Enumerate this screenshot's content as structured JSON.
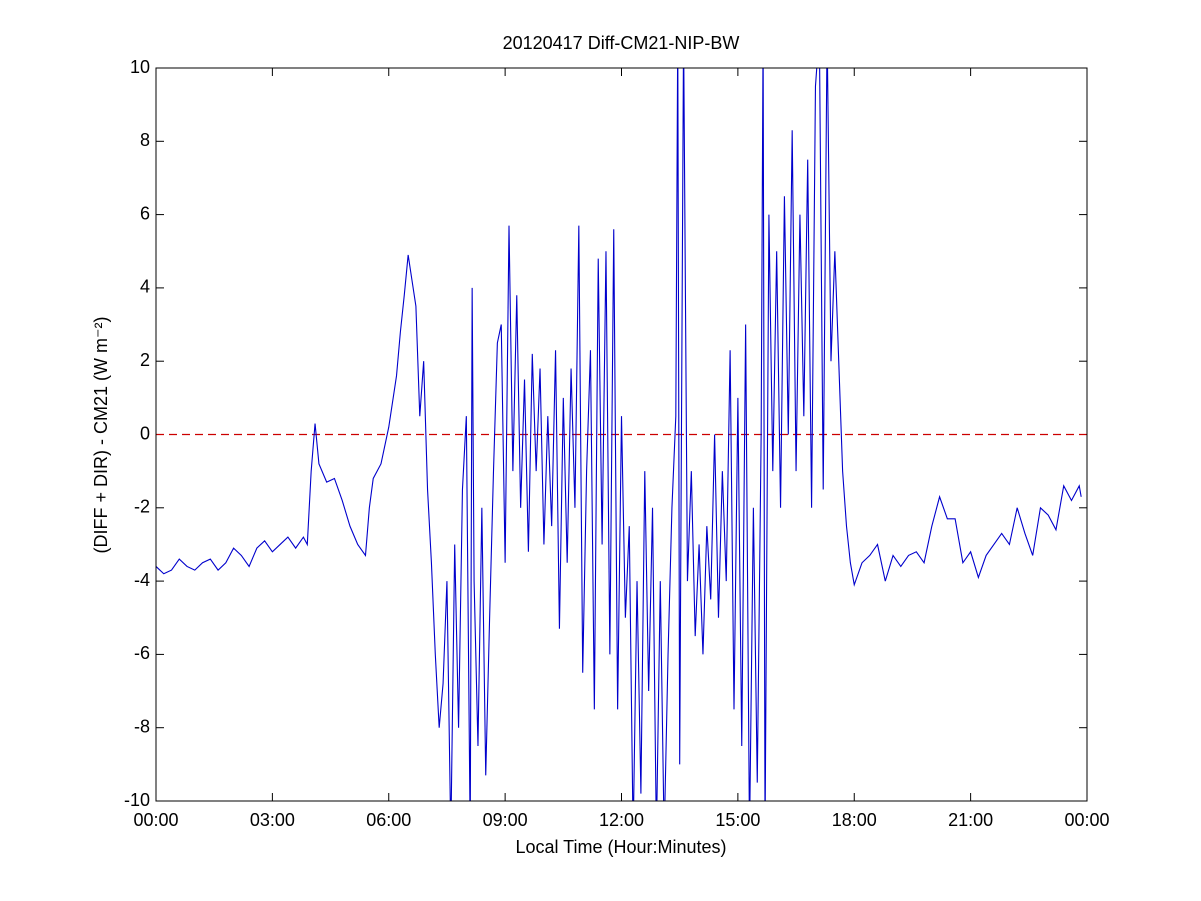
{
  "chart_data": {
    "type": "line",
    "title": "20120417 Diff-CM21-NIP-BW",
    "xlabel": "Local Time (Hour:Minutes)",
    "ylabel": "(DIFF + DIR) - CM21 (W m⁻²)",
    "color": "#0000cc",
    "reference_line": {
      "y": 0,
      "color": "#cc0000",
      "style": "dashed"
    },
    "xlim": [
      0,
      24
    ],
    "xticks": [
      {
        "value": 0,
        "label": "00:00"
      },
      {
        "value": 3,
        "label": "03:00"
      },
      {
        "value": 6,
        "label": "06:00"
      },
      {
        "value": 9,
        "label": "09:00"
      },
      {
        "value": 12,
        "label": "12:00"
      },
      {
        "value": 15,
        "label": "15:00"
      },
      {
        "value": 18,
        "label": "18:00"
      },
      {
        "value": 21,
        "label": "21:00"
      },
      {
        "value": 24,
        "label": "00:00"
      }
    ],
    "ylim": [
      -10,
      10
    ],
    "yticks": [
      -10,
      -8,
      -6,
      -4,
      -2,
      0,
      2,
      4,
      6,
      8,
      10
    ],
    "x": [
      0.0,
      0.2,
      0.4,
      0.6,
      0.8,
      1.0,
      1.2,
      1.4,
      1.6,
      1.8,
      2.0,
      2.2,
      2.4,
      2.6,
      2.8,
      3.0,
      3.2,
      3.4,
      3.6,
      3.8,
      3.9,
      4.0,
      4.1,
      4.2,
      4.4,
      4.6,
      4.8,
      5.0,
      5.2,
      5.4,
      5.5,
      5.6,
      5.8,
      6.0,
      6.2,
      6.3,
      6.4,
      6.5,
      6.6,
      6.7,
      6.8,
      6.9,
      7.0,
      7.1,
      7.2,
      7.3,
      7.4,
      7.5,
      7.6,
      7.7,
      7.8,
      7.9,
      8.0,
      8.1,
      8.15,
      8.2,
      8.3,
      8.4,
      8.5,
      8.6,
      8.7,
      8.8,
      8.9,
      9.0,
      9.1,
      9.2,
      9.3,
      9.4,
      9.5,
      9.6,
      9.7,
      9.8,
      9.9,
      10.0,
      10.1,
      10.2,
      10.3,
      10.4,
      10.5,
      10.6,
      10.7,
      10.8,
      10.9,
      11.0,
      11.1,
      11.2,
      11.3,
      11.4,
      11.5,
      11.6,
      11.7,
      11.8,
      11.9,
      12.0,
      12.1,
      12.2,
      12.3,
      12.4,
      12.5,
      12.6,
      12.7,
      12.8,
      12.9,
      13.0,
      13.1,
      13.2,
      13.3,
      13.4,
      13.45,
      13.5,
      13.6,
      13.7,
      13.8,
      13.9,
      14.0,
      14.1,
      14.2,
      14.3,
      14.4,
      14.5,
      14.6,
      14.7,
      14.8,
      14.9,
      15.0,
      15.1,
      15.2,
      15.3,
      15.4,
      15.5,
      15.6,
      15.65,
      15.7,
      15.8,
      15.9,
      16.0,
      16.1,
      16.2,
      16.3,
      16.4,
      16.5,
      16.6,
      16.7,
      16.8,
      16.9,
      17.0,
      17.1,
      17.2,
      17.3,
      17.4,
      17.5,
      17.6,
      17.7,
      17.8,
      17.9,
      18.0,
      18.2,
      18.4,
      18.6,
      18.8,
      19.0,
      19.2,
      19.4,
      19.6,
      19.8,
      20.0,
      20.2,
      20.4,
      20.6,
      20.8,
      21.0,
      21.2,
      21.4,
      21.6,
      21.8,
      22.0,
      22.2,
      22.4,
      22.6,
      22.8,
      23.0,
      23.2,
      23.4,
      23.6,
      23.8,
      23.85
    ],
    "values": [
      -3.6,
      -3.8,
      -3.7,
      -3.4,
      -3.6,
      -3.7,
      -3.5,
      -3.4,
      -3.7,
      -3.5,
      -3.1,
      -3.3,
      -3.6,
      -3.1,
      -2.9,
      -3.2,
      -3.0,
      -2.8,
      -3.1,
      -2.8,
      -3.0,
      -1.0,
      0.3,
      -0.8,
      -1.3,
      -1.2,
      -1.8,
      -2.5,
      -3.0,
      -3.3,
      -2.0,
      -1.2,
      -0.8,
      0.2,
      1.6,
      2.8,
      3.8,
      4.9,
      4.2,
      3.5,
      0.5,
      2.0,
      -1.5,
      -3.5,
      -6.0,
      -8.0,
      -6.8,
      -4.0,
      -11,
      -3.0,
      -8.0,
      -1.5,
      0.5,
      -11,
      4.0,
      -4,
      -8.5,
      -2,
      -9.3,
      -5,
      -1,
      2.5,
      3.0,
      -3.5,
      5.7,
      -1,
      3.8,
      -2,
      1.5,
      -3.2,
      2.2,
      -1,
      1.8,
      -3,
      0.5,
      -2.5,
      2.3,
      -5.3,
      1.0,
      -3.5,
      1.8,
      -2,
      5.7,
      -6.5,
      -1,
      2.3,
      -7.5,
      4.8,
      -3,
      5.0,
      -6.0,
      5.6,
      -7.5,
      0.5,
      -5,
      -2.5,
      -11,
      -4,
      -9.8,
      -1,
      -7.0,
      -2,
      -11,
      -4,
      -11,
      -6,
      -2,
      0.5,
      11,
      -9,
      11,
      -4,
      -1,
      -5.5,
      -3,
      -6,
      -2.5,
      -4.5,
      0,
      -5,
      -1,
      -4,
      2.3,
      -7.5,
      1,
      -8.5,
      3,
      -11,
      -2,
      -9.5,
      0,
      11,
      -11,
      6,
      -1,
      5,
      -2,
      6.5,
      0,
      8.3,
      -1,
      6,
      0.5,
      7.5,
      -2,
      9.5,
      11,
      -1.5,
      11,
      2,
      5,
      2,
      -1,
      -2.5,
      -3.5,
      -4.1,
      -3.5,
      -3.3,
      -3.0,
      -4.0,
      -3.3,
      -3.6,
      -3.3,
      -3.2,
      -3.5,
      -2.5,
      -1.7,
      -2.3,
      -2.3,
      -3.5,
      -3.2,
      -3.9,
      -3.3,
      -3.0,
      -2.7,
      -3.0,
      -2.0,
      -2.7,
      -3.3,
      -2.0,
      -2.2,
      -2.6,
      -1.4,
      -1.8,
      -1.4,
      -1.7
    ]
  }
}
